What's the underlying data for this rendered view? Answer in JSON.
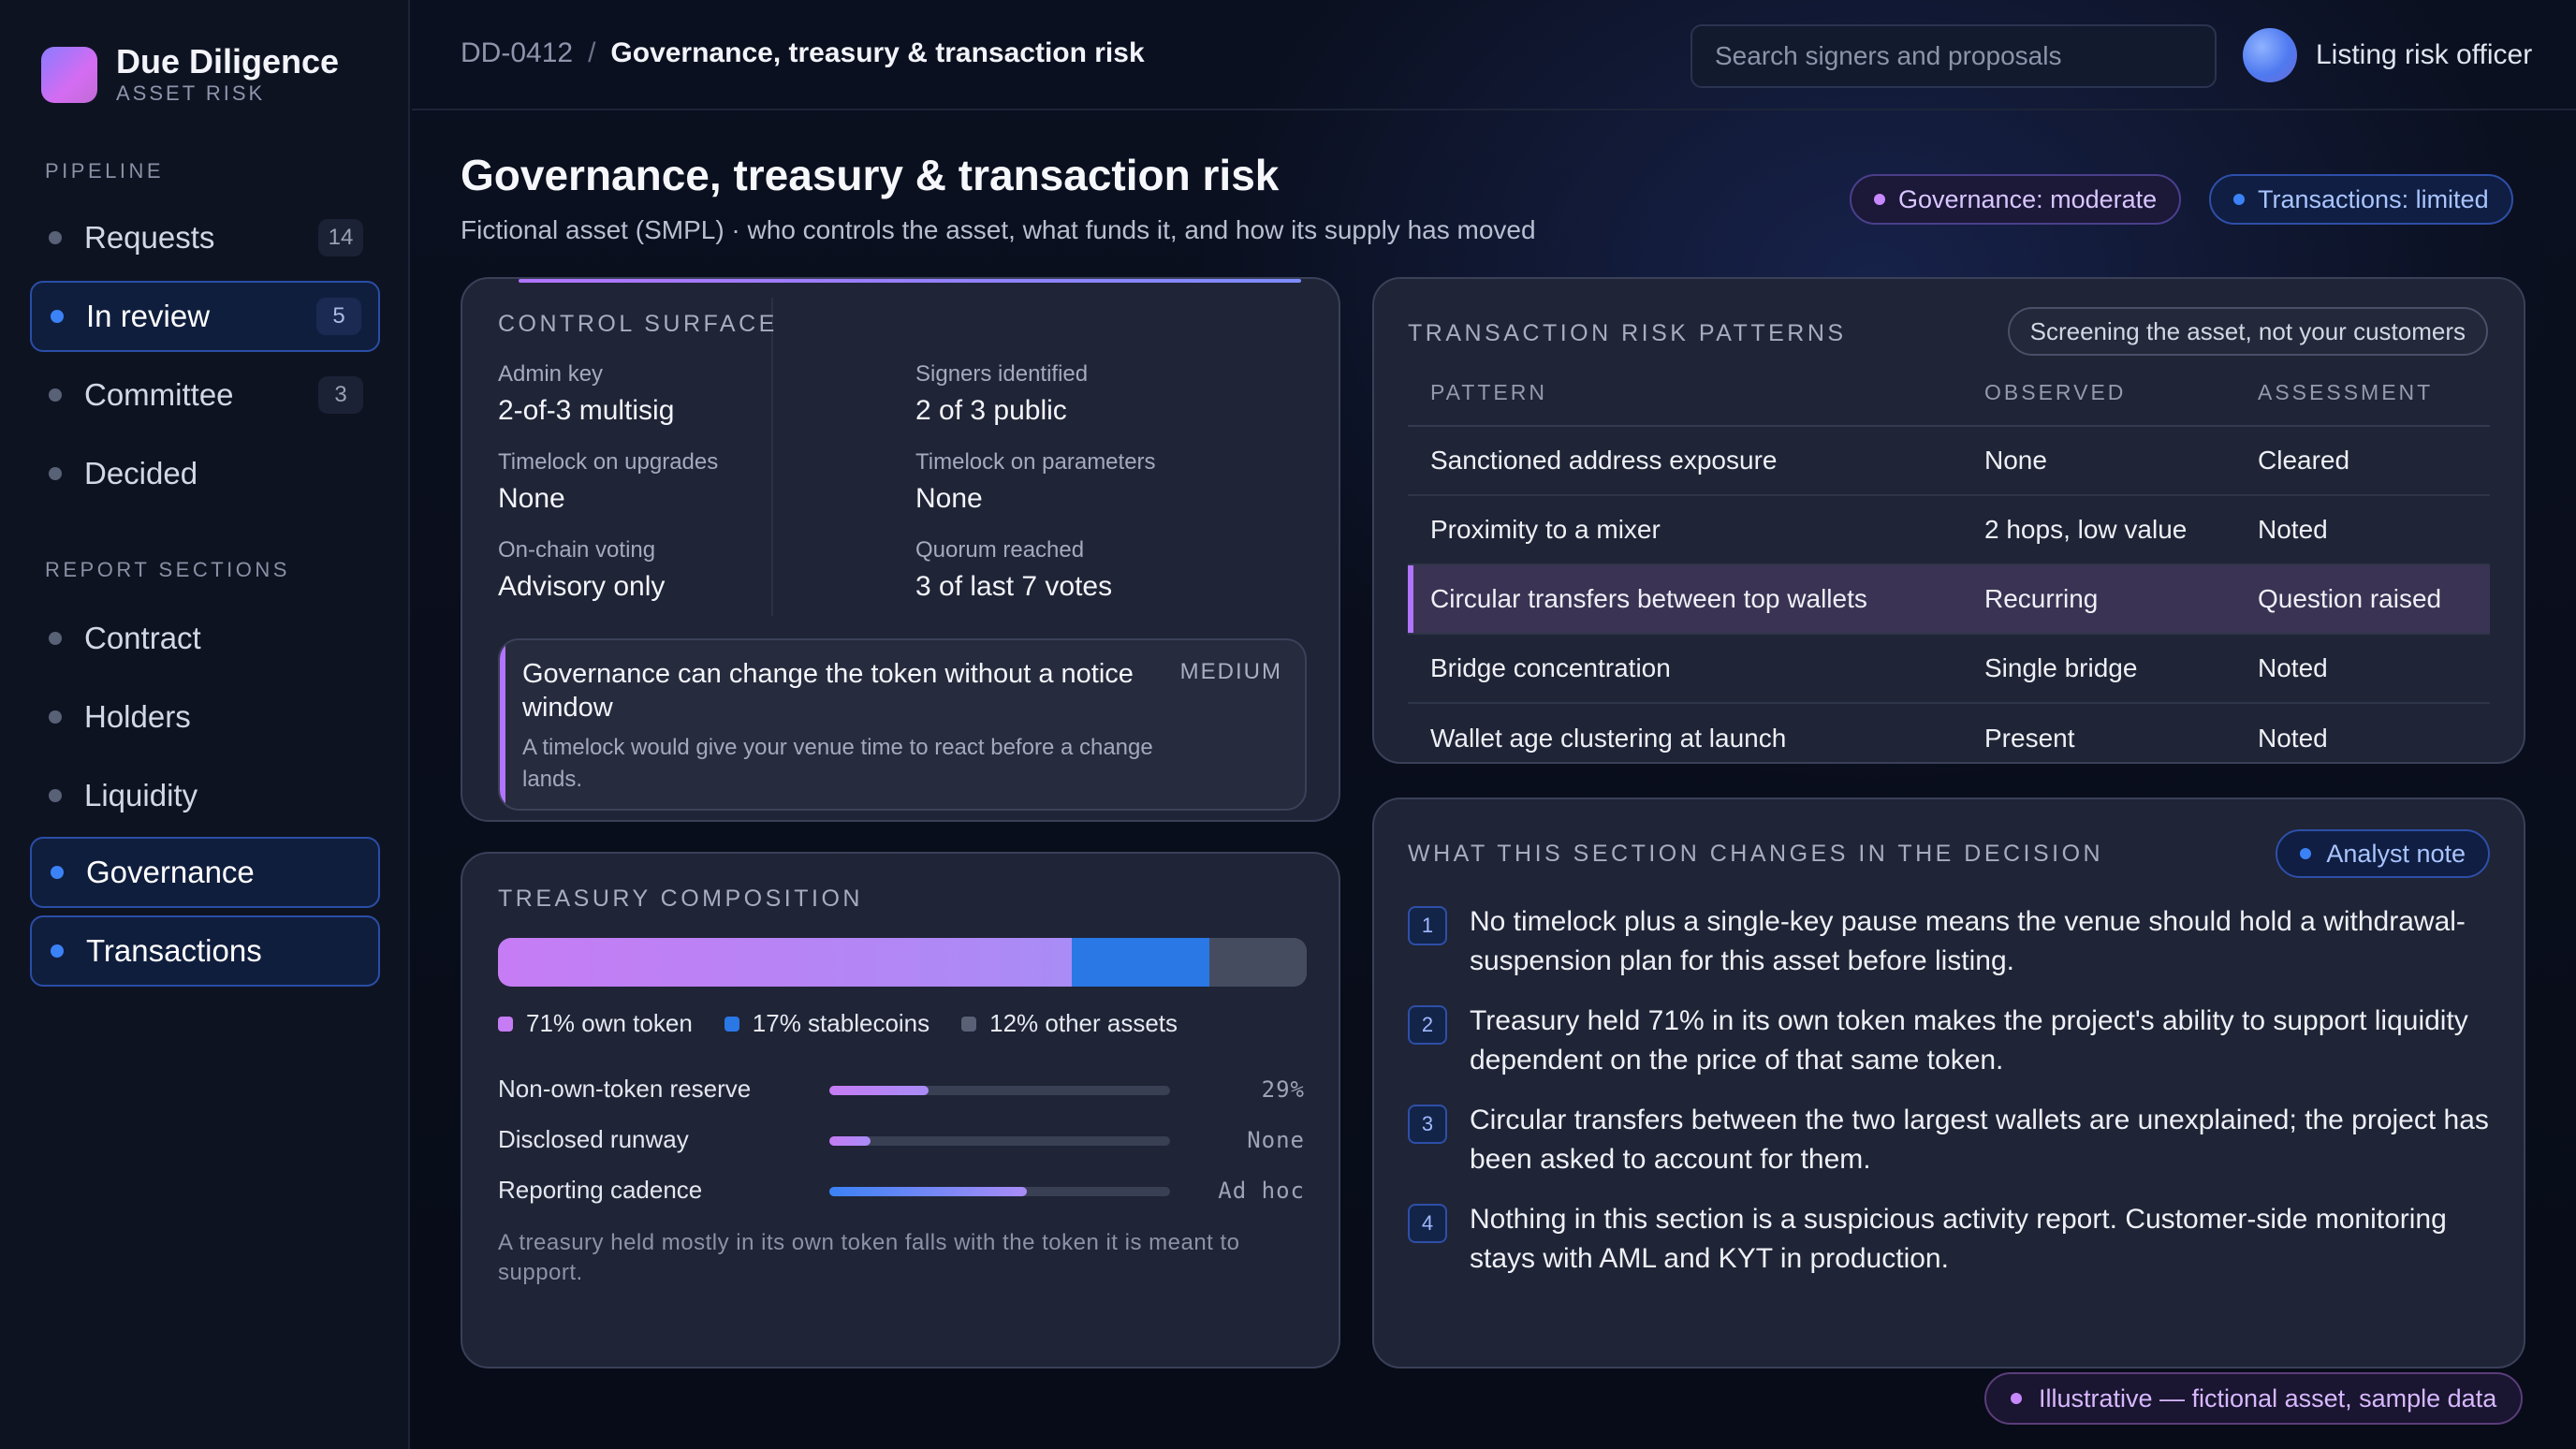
{
  "brand": {
    "title": "Due Diligence",
    "subtitle": "ASSET RISK"
  },
  "sidebar": {
    "pipeline_heading": "PIPELINE",
    "pipeline": [
      {
        "label": "Requests",
        "count": "14",
        "active": false
      },
      {
        "label": "In review",
        "count": "5",
        "active": true
      },
      {
        "label": "Committee",
        "count": "3",
        "active": false
      },
      {
        "label": "Decided",
        "count": "",
        "active": false
      }
    ],
    "sections_heading": "REPORT SECTIONS",
    "sections": [
      {
        "label": "Contract",
        "active": false
      },
      {
        "label": "Holders",
        "active": false
      },
      {
        "label": "Liquidity",
        "active": false
      },
      {
        "label": "Governance",
        "active": true
      },
      {
        "label": "Transactions",
        "active": true
      }
    ]
  },
  "header": {
    "breadcrumb_id": "DD-0412",
    "breadcrumb_sep": "/",
    "breadcrumb_current": "Governance, treasury & transaction risk",
    "search_placeholder": "Search signers and proposals",
    "user_name": "Listing risk officer"
  },
  "page": {
    "title": "Governance, treasury & transaction risk",
    "subtitle": "Fictional asset (SMPL) · who controls the asset, what funds it, and how its supply has moved",
    "badges": {
      "governance": "Governance: moderate",
      "transactions": "Transactions: limited"
    }
  },
  "control": {
    "title": "CONTROL SURFACE",
    "fields": [
      {
        "key": "Admin key",
        "value": "2-of-3 multisig"
      },
      {
        "key": "Signers identified",
        "value": "2 of 3 public"
      },
      {
        "key": "Timelock on upgrades",
        "value": "None"
      },
      {
        "key": "Timelock on parameters",
        "value": "None"
      },
      {
        "key": "On-chain voting",
        "value": "Advisory only"
      },
      {
        "key": "Quorum reached",
        "value": "3 of last 7 votes"
      }
    ],
    "alert": {
      "title": "Governance can change the token without a notice window",
      "severity": "MEDIUM",
      "body": "A timelock would give your venue time to react before a change lands."
    }
  },
  "treasury": {
    "title": "TREASURY COMPOSITION",
    "composition": [
      {
        "label": "71% own token",
        "percent": 71,
        "color": "#c67cf4"
      },
      {
        "label": "17% stablecoins",
        "percent": 17,
        "color": "#2a77e6"
      },
      {
        "label": "12% other assets",
        "percent": 12,
        "color": "#5a6075"
      }
    ],
    "metrics": [
      {
        "label": "Non-own-token reserve",
        "value": "29%",
        "level": 0.29
      },
      {
        "label": "Disclosed runway",
        "value": "None",
        "level": 0.12
      },
      {
        "label": "Reporting cadence",
        "value": "Ad hoc",
        "level": 0.58
      }
    ],
    "note": "A treasury held mostly in its own token falls with the token it is meant to support."
  },
  "transactions": {
    "title": "TRANSACTION RISK PATTERNS",
    "tag": "Screening the asset, not your customers",
    "columns": [
      "PATTERN",
      "OBSERVED",
      "ASSESSMENT"
    ],
    "rows": [
      {
        "pattern": "Sanctioned address exposure",
        "observed": "None",
        "assessment": "Cleared",
        "highlight": false
      },
      {
        "pattern": "Proximity to a mixer",
        "observed": "2 hops, low value",
        "assessment": "Noted",
        "highlight": false
      },
      {
        "pattern": "Circular transfers between top wallets",
        "observed": "Recurring",
        "assessment": "Question raised",
        "highlight": true
      },
      {
        "pattern": "Bridge concentration",
        "observed": "Single bridge",
        "assessment": "Noted",
        "highlight": false
      },
      {
        "pattern": "Wallet age clustering at launch",
        "observed": "Present",
        "assessment": "Noted",
        "highlight": false
      }
    ]
  },
  "decision": {
    "title": "WHAT THIS SECTION CHANGES IN THE DECISION",
    "tag": "Analyst note",
    "items": [
      {
        "num": "1",
        "text": "No timelock plus a single-key pause means the venue should hold a withdrawal-suspension plan for this asset before listing."
      },
      {
        "num": "2",
        "text": "Treasury held 71% in its own token makes the project's ability to support liquidity dependent on the price of that same token."
      },
      {
        "num": "3",
        "text": "Circular transfers between the two largest wallets are unexplained; the project has been asked to account for them."
      },
      {
        "num": "4",
        "text": "Nothing in this section is a suspicious activity report. Customer-side monitoring stays with AML and KYT in production."
      }
    ]
  },
  "footer": {
    "label": "Illustrative — fictional asset, sample data"
  }
}
